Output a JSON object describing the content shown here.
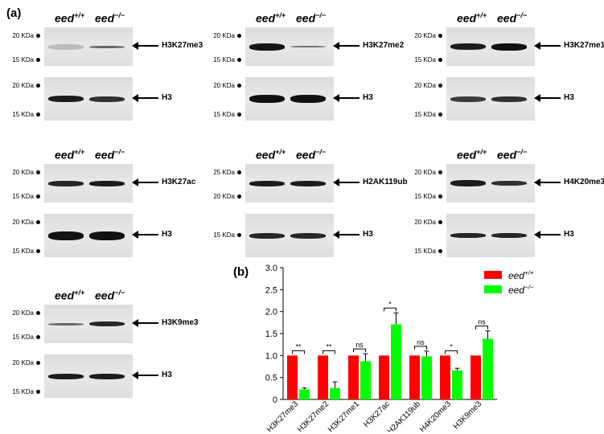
{
  "panel_a_label": "(a)",
  "panel_b_label": "(b)",
  "genotype_wt_base": "eed",
  "genotype_wt_sup": "+/+",
  "genotype_ko_base": "eed",
  "genotype_ko_sup": "−/−",
  "blots": [
    {
      "marker_top": [
        "20 KDa",
        "15 KDa"
      ],
      "target": "H3K27me3",
      "marker_bottom": [
        "20 KDa",
        "15 KDa"
      ],
      "loading": "H3"
    },
    {
      "marker_top": [
        "20 KDa",
        "15 KDa"
      ],
      "target": "H3K27me2",
      "marker_bottom": [
        "20 KDa",
        "15 KDa"
      ],
      "loading": "H3"
    },
    {
      "marker_top": [
        "20 KDa",
        "15 KDa"
      ],
      "target": "H3K27me1",
      "marker_bottom": [
        "20 KDa",
        "15 KDa"
      ],
      "loading": "H3"
    },
    {
      "marker_top": [
        "20 KDa",
        "15 KDa"
      ],
      "target": "H3K27ac",
      "marker_bottom": [
        "20 KDa",
        "15 KDa"
      ],
      "loading": "H3"
    },
    {
      "marker_top": [
        "25 KDa",
        "20 KDa"
      ],
      "target": "H2AK119ub",
      "marker_bottom": [
        "15 KDa"
      ],
      "loading": "H3"
    },
    {
      "marker_top": [
        "20 KDa",
        "15 KDa"
      ],
      "target": "H4K20me3",
      "marker_bottom": [
        "20 KDa",
        "15 KDa"
      ],
      "loading": "H3"
    },
    {
      "marker_top": [
        "20 KDa",
        "15 KDa"
      ],
      "target": "H3K9me3",
      "marker_bottom": [
        "20 KDa",
        "15 KDa"
      ],
      "loading": "H3"
    }
  ],
  "chart_data": {
    "type": "bar",
    "categories": [
      "H3K27me3",
      "H3K27me2",
      "H3K27me1",
      "H3K27ac",
      "H2AK119ub",
      "H4K20me3",
      "H3K9me3"
    ],
    "series": [
      {
        "name": "eed+/+",
        "color": "#ff0000",
        "values": [
          1.0,
          1.0,
          1.0,
          1.0,
          1.0,
          1.0,
          1.0
        ],
        "errors": [
          0,
          0,
          0,
          0,
          0,
          0,
          0
        ]
      },
      {
        "name": "eed−/−",
        "color": "#00ff00",
        "values": [
          0.23,
          0.26,
          0.87,
          1.71,
          0.98,
          0.66,
          1.38
        ],
        "errors": [
          0.03,
          0.14,
          0.17,
          0.26,
          0.12,
          0.05,
          0.18
        ]
      }
    ],
    "significance": [
      "**",
      "**",
      "ns",
      "*",
      "ns",
      "*",
      "ns"
    ],
    "yticks": [
      "0",
      "0.5",
      "1.0",
      "1.5",
      "2.0",
      "2.5",
      "3.0"
    ],
    "ylim": [
      0,
      3.0
    ],
    "legend_placement": "top-right"
  }
}
